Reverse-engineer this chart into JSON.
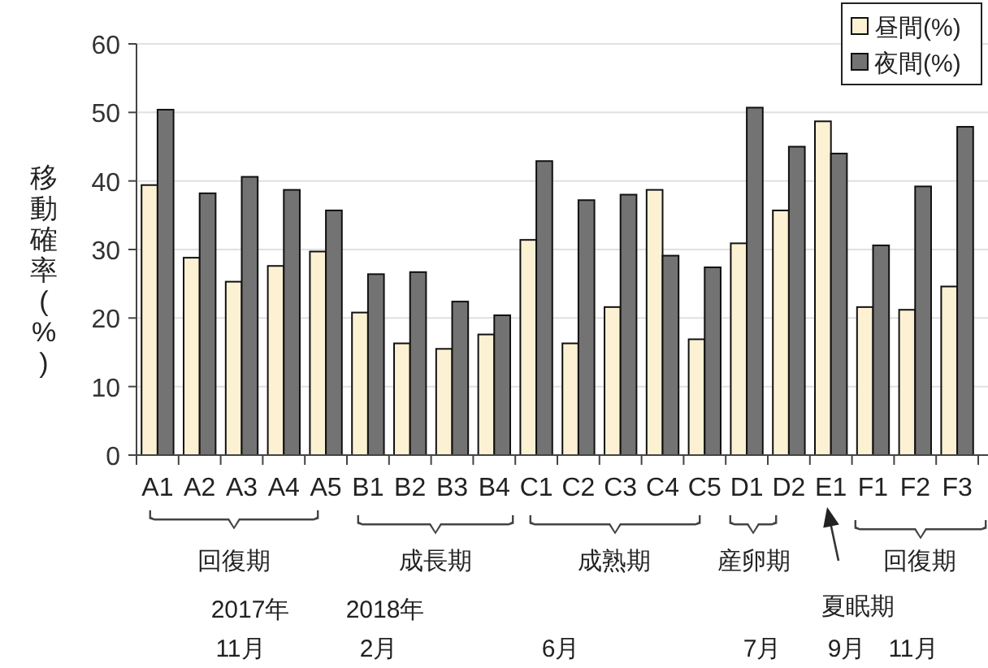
{
  "chart_data": {
    "type": "bar",
    "ylabel": "移動確率(%)",
    "categories": [
      "A1",
      "A2",
      "A3",
      "A4",
      "A5",
      "B1",
      "B2",
      "B3",
      "B4",
      "C1",
      "C2",
      "C3",
      "C4",
      "C5",
      "D1",
      "D2",
      "E1",
      "F1",
      "F2",
      "F3"
    ],
    "series": [
      {
        "name": "昼間(%)",
        "color": "#fdf1d3",
        "values": [
          39.4,
          28.8,
          25.3,
          27.6,
          29.7,
          20.8,
          16.3,
          15.5,
          17.6,
          31.4,
          16.3,
          21.6,
          38.7,
          16.9,
          30.9,
          35.7,
          48.7,
          21.6,
          21.2,
          24.6
        ]
      },
      {
        "name": "夜間(%)",
        "color": "#737373",
        "values": [
          50.4,
          38.2,
          40.6,
          38.7,
          35.7,
          26.4,
          26.7,
          22.4,
          20.4,
          42.9,
          37.2,
          38.0,
          29.1,
          27.4,
          50.7,
          45.0,
          44.0,
          30.6,
          39.2,
          47.9
        ]
      }
    ],
    "ylim": [
      0,
      60
    ],
    "yticks": [
      0,
      10,
      20,
      30,
      40,
      50,
      60
    ],
    "grid": "y",
    "legend": "top right",
    "annotations": [
      "回復期",
      "成長期",
      "成熟期",
      "産卵期",
      "夏眠期",
      "回復期",
      "2017年",
      "11月",
      "2018年",
      "2月",
      "6月",
      "7月",
      "9月",
      "11月"
    ]
  }
}
